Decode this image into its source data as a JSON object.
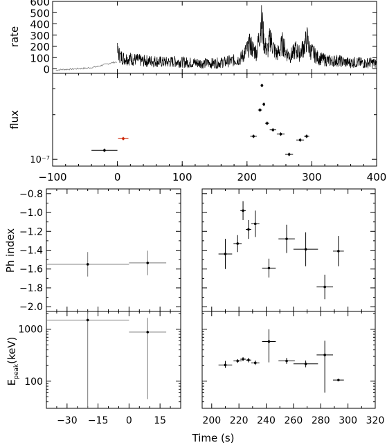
{
  "figure": {
    "xlabel": "Time (s)"
  },
  "chart_data": [
    {
      "id": "rate",
      "type": "line",
      "ylabel": "rate",
      "xlim": [
        -100,
        400
      ],
      "ylim": [
        -40,
        600
      ],
      "yticks": [
        0,
        100,
        200,
        300,
        400,
        500,
        600
      ],
      "xticks": [
        -100,
        0,
        100,
        200,
        300,
        400
      ],
      "grey_segment": {
        "x": [
          -95,
          -90,
          -85,
          -80,
          -75,
          -70,
          -65,
          -60,
          -55,
          -50,
          -45,
          -40,
          -35,
          -30,
          -25,
          -20,
          -15,
          -10,
          -5,
          0
        ],
        "y": [
          -12,
          -8,
          -6,
          -5,
          -3,
          -2,
          0,
          2,
          3,
          5,
          8,
          12,
          16,
          22,
          30,
          38,
          45,
          52,
          58,
          62
        ]
      },
      "series": [
        {
          "x": [
            0,
            5,
            10,
            20,
            30,
            40,
            50,
            60,
            70,
            80,
            90,
            100,
            110,
            120,
            130,
            140,
            150,
            160,
            170,
            180,
            190,
            200,
            205,
            210,
            215,
            220,
            222,
            224,
            226,
            228,
            232,
            236,
            240,
            245,
            250,
            255,
            260,
            265,
            270,
            275,
            280,
            285,
            290,
            293,
            296,
            300,
            310,
            320,
            330,
            340,
            350,
            360,
            370,
            380,
            390,
            400
          ],
          "y": [
            150,
            110,
            95,
            90,
            80,
            70,
            70,
            68,
            60,
            60,
            65,
            60,
            55,
            55,
            50,
            50,
            50,
            55,
            65,
            75,
            90,
            170,
            220,
            165,
            150,
            330,
            420,
            380,
            240,
            200,
            165,
            280,
            200,
            130,
            155,
            230,
            150,
            120,
            125,
            175,
            135,
            170,
            225,
            270,
            180,
            150,
            95,
            80,
            70,
            75,
            60,
            55,
            60,
            50,
            55,
            48
          ]
        }
      ]
    },
    {
      "id": "flux",
      "type": "scatter",
      "ylabel": "flux",
      "ytick_labels": [
        "10⁻⁷"
      ],
      "xlim": [
        -100,
        400
      ],
      "xticks": [
        -100,
        0,
        100,
        200,
        300,
        400
      ],
      "xtick_labels": [
        "−100",
        "0",
        "100",
        "200",
        "300",
        "400"
      ],
      "log_scale": true,
      "points": [
        {
          "x": -20,
          "xerr": 20,
          "y": 1.15e-07,
          "color": "#000000"
        },
        {
          "x": 9,
          "xerr": 8,
          "y": 1.38e-07,
          "color": "#cc2200"
        },
        {
          "x": 210,
          "xerr": 5,
          "y": 1.43e-07,
          "color": "#000000"
        },
        {
          "x": 220,
          "xerr": 3,
          "y": 2.15e-07,
          "color": "#000000"
        },
        {
          "x": 223,
          "xerr": 2,
          "y": 3.15e-07,
          "color": "#000000"
        },
        {
          "x": 226,
          "xerr": 2,
          "y": 2.35e-07,
          "color": "#000000"
        },
        {
          "x": 231,
          "xerr": 3,
          "y": 1.75e-07,
          "color": "#000000"
        },
        {
          "x": 240,
          "xerr": 5,
          "y": 1.58e-07,
          "color": "#000000"
        },
        {
          "x": 252,
          "xerr": 6,
          "y": 1.48e-07,
          "color": "#000000"
        },
        {
          "x": 265,
          "xerr": 6,
          "y": 1.08e-07,
          "color": "#000000"
        },
        {
          "x": 282,
          "xerr": 6,
          "y": 1.35e-07,
          "color": "#000000"
        },
        {
          "x": 292,
          "xerr": 4,
          "y": 1.43e-07,
          "color": "#000000"
        }
      ]
    },
    {
      "id": "index-early",
      "type": "scatter",
      "ylabel": "Ph index",
      "xlim": [
        -40,
        25
      ],
      "ylim": [
        -2.05,
        -0.75
      ],
      "yticks": [
        -2.0,
        -1.8,
        -1.6,
        -1.4,
        -1.2,
        -1.0,
        -0.8
      ],
      "ytick_labels": [
        "−2.0",
        "−1.8",
        "−1.6",
        "−1.4",
        "−1.2",
        "−1.0",
        "−0.8"
      ],
      "points": [
        {
          "x": -20,
          "xerr": 20,
          "y": -1.55,
          "yerr": 0.13
        },
        {
          "x": 9,
          "xerr": 9,
          "y": -1.535,
          "yerr": 0.13
        }
      ]
    },
    {
      "id": "index-late",
      "type": "scatter",
      "xlim": [
        193,
        320
      ],
      "ylim": [
        -2.05,
        -0.75
      ],
      "points": [
        {
          "x": 210,
          "xerr": 5,
          "y": -1.44,
          "yerr": 0.16
        },
        {
          "x": 219,
          "xerr": 3,
          "y": -1.33,
          "yerr": 0.09
        },
        {
          "x": 223,
          "xerr": 2,
          "y": -0.98,
          "yerr": 0.1
        },
        {
          "x": 227,
          "xerr": 2,
          "y": -1.18,
          "yerr": 0.1
        },
        {
          "x": 232,
          "xerr": 3,
          "y": -1.12,
          "yerr": 0.14
        },
        {
          "x": 242,
          "xerr": 5,
          "y": -1.59,
          "yerr": 0.1
        },
        {
          "x": 255,
          "xerr": 6,
          "y": -1.28,
          "yerr": 0.15
        },
        {
          "x": 269,
          "xerr": 9,
          "y": -1.39,
          "yerr": 0.18
        },
        {
          "x": 283,
          "xerr": 6,
          "y": -1.79,
          "yerr": 0.13
        },
        {
          "x": 293,
          "xerr": 4,
          "y": -1.41,
          "yerr": 0.16
        }
      ]
    },
    {
      "id": "epeak-early",
      "type": "scatter",
      "ylabel_main": "E",
      "ylabel_sub": "peak",
      "ylabel_tail": "(keV)",
      "log_scale": true,
      "xlim": [
        -40,
        25
      ],
      "ylim": [
        30,
        2200
      ],
      "xticks": [
        -30,
        -15,
        0,
        15
      ],
      "xtick_labels": [
        "−30",
        "−15",
        "0",
        "15"
      ],
      "yticks": [
        100,
        1000
      ],
      "ytick_labels": [
        "100",
        "1000"
      ],
      "points": [
        {
          "x": -20,
          "xerr": 20,
          "y": 1500,
          "ylo": 30,
          "yhi": 2200
        },
        {
          "x": 9,
          "xerr": 9,
          "y": 880,
          "ylo": 45,
          "yhi": 1650
        }
      ]
    },
    {
      "id": "epeak-late",
      "type": "scatter",
      "log_scale": true,
      "xlim": [
        193,
        320
      ],
      "ylim": [
        30,
        2200
      ],
      "xticks": [
        200,
        220,
        240,
        260,
        280,
        300,
        320
      ],
      "xtick_labels": [
        "200",
        "220",
        "240",
        "260",
        "280",
        "300",
        "320"
      ],
      "points": [
        {
          "x": 210,
          "xerr": 5,
          "y": 205,
          "ylo": 180,
          "yhi": 245
        },
        {
          "x": 219,
          "xerr": 3,
          "y": 245,
          "ylo": 225,
          "yhi": 265
        },
        {
          "x": 223,
          "xerr": 2,
          "y": 265,
          "ylo": 245,
          "yhi": 290
        },
        {
          "x": 227,
          "xerr": 2,
          "y": 255,
          "ylo": 230,
          "yhi": 280
        },
        {
          "x": 232,
          "xerr": 3,
          "y": 225,
          "ylo": 205,
          "yhi": 250
        },
        {
          "x": 242,
          "xerr": 5,
          "y": 580,
          "ylo": 230,
          "yhi": 1000
        },
        {
          "x": 255,
          "xerr": 6,
          "y": 245,
          "ylo": 215,
          "yhi": 280
        },
        {
          "x": 269,
          "xerr": 9,
          "y": 215,
          "ylo": 185,
          "yhi": 250
        },
        {
          "x": 283,
          "xerr": 6,
          "y": 320,
          "ylo": 60,
          "yhi": 600
        },
        {
          "x": 293,
          "xerr": 4,
          "y": 105,
          "ylo": 100,
          "yhi": 110
        }
      ]
    }
  ]
}
